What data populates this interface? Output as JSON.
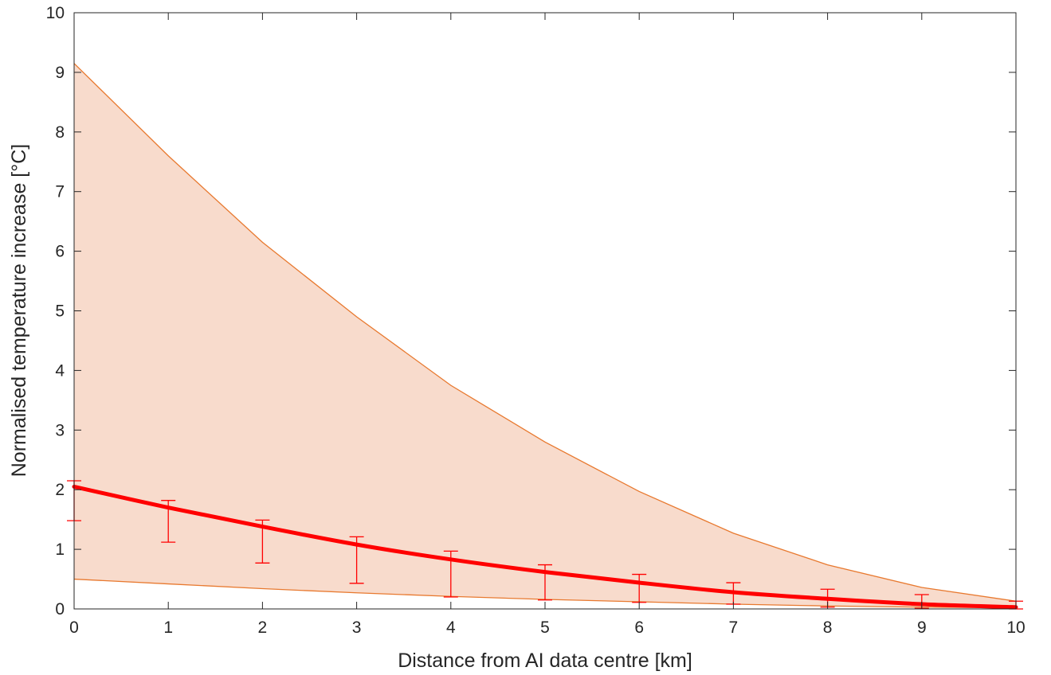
{
  "chart_data": {
    "type": "line",
    "title": "",
    "xlabel": "Distance from AI data centre [km]",
    "ylabel": "Normalised temperature increase [°C]",
    "xlim": [
      0,
      10
    ],
    "ylim": [
      0,
      10
    ],
    "xticks": [
      0,
      1,
      2,
      3,
      4,
      5,
      6,
      7,
      8,
      9,
      10
    ],
    "yticks": [
      0,
      1,
      2,
      3,
      4,
      5,
      6,
      7,
      8,
      9,
      10
    ],
    "grid": false,
    "legend": "none",
    "x": [
      0,
      1,
      2,
      3,
      4,
      5,
      6,
      7,
      8,
      9,
      10
    ],
    "band": {
      "upper": [
        9.15,
        7.6,
        6.15,
        4.9,
        3.75,
        2.8,
        1.97,
        1.27,
        0.74,
        0.36,
        0.13
      ],
      "lower": [
        0.5,
        0.42,
        0.34,
        0.27,
        0.21,
        0.16,
        0.12,
        0.08,
        0.05,
        0.03,
        0.02
      ],
      "fill_color": "#f8dbcc",
      "edge_color": "#e8792f"
    },
    "mean": {
      "values": [
        2.05,
        1.7,
        1.38,
        1.08,
        0.83,
        0.62,
        0.44,
        0.28,
        0.17,
        0.08,
        0.03
      ],
      "color": "#ff0000"
    },
    "error_bars": {
      "upper": [
        2.15,
        1.82,
        1.49,
        1.21,
        0.97,
        0.74,
        0.58,
        0.44,
        0.33,
        0.24,
        0.13
      ],
      "lower": [
        1.48,
        1.12,
        0.77,
        0.43,
        0.2,
        0.15,
        0.11,
        0.08,
        0.03,
        0.01,
        0.0
      ],
      "color": "#ff0000"
    }
  }
}
